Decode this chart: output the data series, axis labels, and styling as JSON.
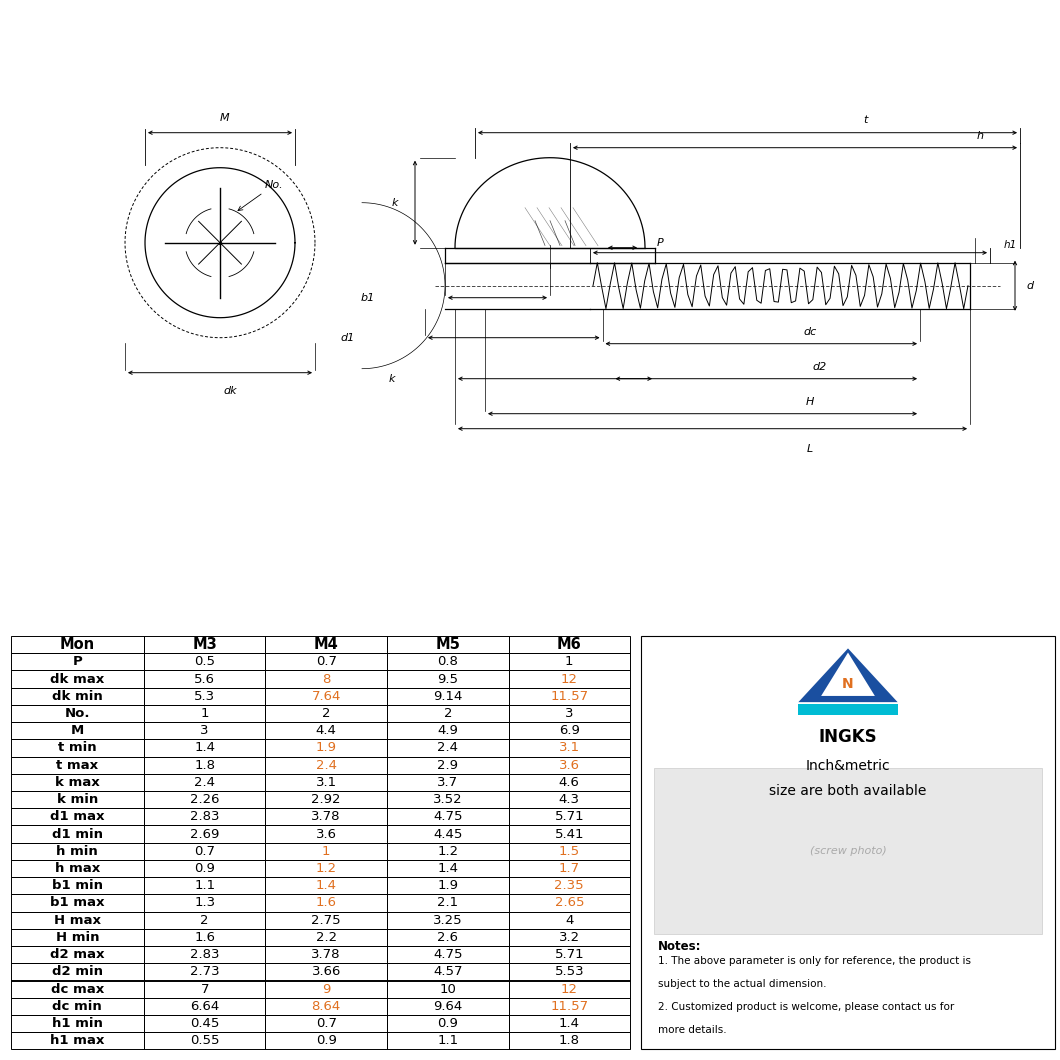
{
  "table_headers": [
    "Mon",
    "M3",
    "M4",
    "M5",
    "M6"
  ],
  "table_rows": [
    [
      "P",
      "0.5",
      "0.7",
      "0.8",
      "1"
    ],
    [
      "dk max",
      "5.6",
      "8",
      "9.5",
      "12"
    ],
    [
      "dk min",
      "5.3",
      "7.64",
      "9.14",
      "11.57"
    ],
    [
      "No.",
      "1",
      "2",
      "2",
      "3"
    ],
    [
      "M",
      "3",
      "4.4",
      "4.9",
      "6.9"
    ],
    [
      "t min",
      "1.4",
      "1.9",
      "2.4",
      "3.1"
    ],
    [
      "t max",
      "1.8",
      "2.4",
      "2.9",
      "3.6"
    ],
    [
      "k max",
      "2.4",
      "3.1",
      "3.7",
      "4.6"
    ],
    [
      "k min",
      "2.26",
      "2.92",
      "3.52",
      "4.3"
    ],
    [
      "d1 max",
      "2.83",
      "3.78",
      "4.75",
      "5.71"
    ],
    [
      "d1 min",
      "2.69",
      "3.6",
      "4.45",
      "5.41"
    ],
    [
      "h min",
      "0.7",
      "1",
      "1.2",
      "1.5"
    ],
    [
      "h max",
      "0.9",
      "1.2",
      "1.4",
      "1.7"
    ],
    [
      "b1 min",
      "1.1",
      "1.4",
      "1.9",
      "2.35"
    ],
    [
      "b1 max",
      "1.3",
      "1.6",
      "2.1",
      "2.65"
    ],
    [
      "H max",
      "2",
      "2.75",
      "3.25",
      "4"
    ],
    [
      "H min",
      "1.6",
      "2.2",
      "2.6",
      "3.2"
    ],
    [
      "d2 max",
      "2.83",
      "3.78",
      "4.75",
      "5.71"
    ],
    [
      "d2 min",
      "2.73",
      "3.66",
      "4.57",
      "5.53"
    ],
    [
      "dc max",
      "7",
      "9",
      "10",
      "12"
    ],
    [
      "dc min",
      "6.64",
      "8.64",
      "9.64",
      "11.57"
    ],
    [
      "h1 min",
      "0.45",
      "0.7",
      "0.9",
      "1.4"
    ],
    [
      "h1 max",
      "0.55",
      "0.9",
      "1.1",
      "1.8"
    ]
  ],
  "notes_title": "Notes:",
  "notes_line1": "1. The above parameter is only for reference, the product is",
  "notes_line2": "subject to the actual dimension.",
  "notes_line3": "2. Customized product is welcome, please contact us for",
  "notes_line4": "more details.",
  "brand_name": "INGKS",
  "brand_slogan1": "Inch&metric",
  "brand_slogan2": "size are both available",
  "bg_color": "#ffffff",
  "orange_vals_rows": [
    1,
    2,
    5,
    6,
    11,
    12,
    13,
    14,
    19,
    20
  ],
  "table_font_size": 9.5,
  "header_font_size": 10.5
}
